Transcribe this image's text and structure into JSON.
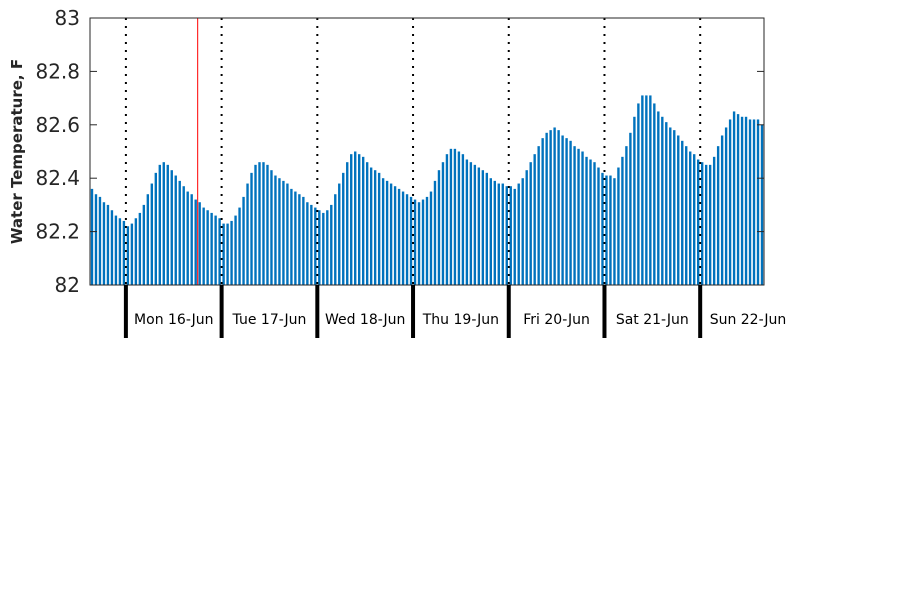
{
  "chart_data": {
    "type": "bar",
    "title": "",
    "ylabel": "Water Temperature, F",
    "xlabel": "",
    "ylim": [
      82,
      83
    ],
    "yticks": [
      {
        "value": 82,
        "label": "82"
      },
      {
        "value": 82.2,
        "label": "82.2"
      },
      {
        "value": 82.4,
        "label": "82.4"
      },
      {
        "value": 82.6,
        "label": "82.6"
      },
      {
        "value": 82.8,
        "label": "82.8"
      },
      {
        "value": 83,
        "label": "83"
      }
    ],
    "x_unit": "hours from Sun 15-Jun 20:00",
    "xlim": [
      0,
      169
    ],
    "day_boundaries": [
      {
        "hour": 9,
        "label": "Mon 16-Jun"
      },
      {
        "hour": 33,
        "label": "Tue 17-Jun"
      },
      {
        "hour": 57,
        "label": "Wed 18-Jun"
      },
      {
        "hour": 81,
        "label": "Thu 19-Jun"
      },
      {
        "hour": 105,
        "label": "Fri 20-Jun"
      },
      {
        "hour": 129,
        "label": "Sat 21-Jun"
      },
      {
        "hour": 153,
        "label": "Sun 22-Jun"
      }
    ],
    "current_time_hour": 27,
    "grid": false,
    "colors": {
      "bar": "#0072BD",
      "current_time": "#ff0000",
      "axis": "#262626"
    },
    "series": [
      {
        "values": [
          82.36,
          82.34,
          82.33,
          82.31,
          82.3,
          82.28,
          82.26,
          82.25,
          82.24,
          82.22,
          82.23,
          82.25,
          82.27,
          82.3,
          82.34,
          82.38,
          82.42,
          82.45,
          82.46,
          82.45,
          82.43,
          82.41,
          82.39,
          82.37,
          82.35,
          82.34,
          82.32,
          82.31,
          82.29,
          82.28,
          82.27,
          82.26,
          82.25,
          82.23,
          82.23,
          82.24,
          82.26,
          82.29,
          82.33,
          82.38,
          82.42,
          82.45,
          82.46,
          82.46,
          82.45,
          82.43,
          82.41,
          82.4,
          82.39,
          82.38,
          82.36,
          82.35,
          82.34,
          82.33,
          82.31,
          82.3,
          82.29,
          82.28,
          82.27,
          82.28,
          82.3,
          82.34,
          82.38,
          82.42,
          82.46,
          82.49,
          82.5,
          82.49,
          82.48,
          82.46,
          82.44,
          82.43,
          82.42,
          82.4,
          82.39,
          82.38,
          82.37,
          82.36,
          82.35,
          82.34,
          82.33,
          82.32,
          82.31,
          82.32,
          82.33,
          82.35,
          82.39,
          82.43,
          82.46,
          82.49,
          82.51,
          82.51,
          82.5,
          82.49,
          82.47,
          82.46,
          82.45,
          82.44,
          82.43,
          82.42,
          82.4,
          82.39,
          82.38,
          82.38,
          82.37,
          82.37,
          82.36,
          82.38,
          82.4,
          82.43,
          82.46,
          82.49,
          82.52,
          82.55,
          82.57,
          82.58,
          82.59,
          82.58,
          82.56,
          82.55,
          82.54,
          82.52,
          82.51,
          82.5,
          82.48,
          82.47,
          82.46,
          82.44,
          82.42,
          82.41,
          82.41,
          82.4,
          82.44,
          82.48,
          82.52,
          82.57,
          82.63,
          82.68,
          82.71,
          82.71,
          82.71,
          82.68,
          82.65,
          82.63,
          82.61,
          82.59,
          82.58,
          82.56,
          82.54,
          82.52,
          82.5,
          82.49,
          82.47,
          82.46,
          82.45,
          82.45,
          82.48,
          82.52,
          82.56,
          82.59,
          82.62,
          82.65,
          82.64,
          82.63,
          82.63,
          82.62,
          82.62,
          82.62,
          82.6
        ]
      }
    ]
  }
}
